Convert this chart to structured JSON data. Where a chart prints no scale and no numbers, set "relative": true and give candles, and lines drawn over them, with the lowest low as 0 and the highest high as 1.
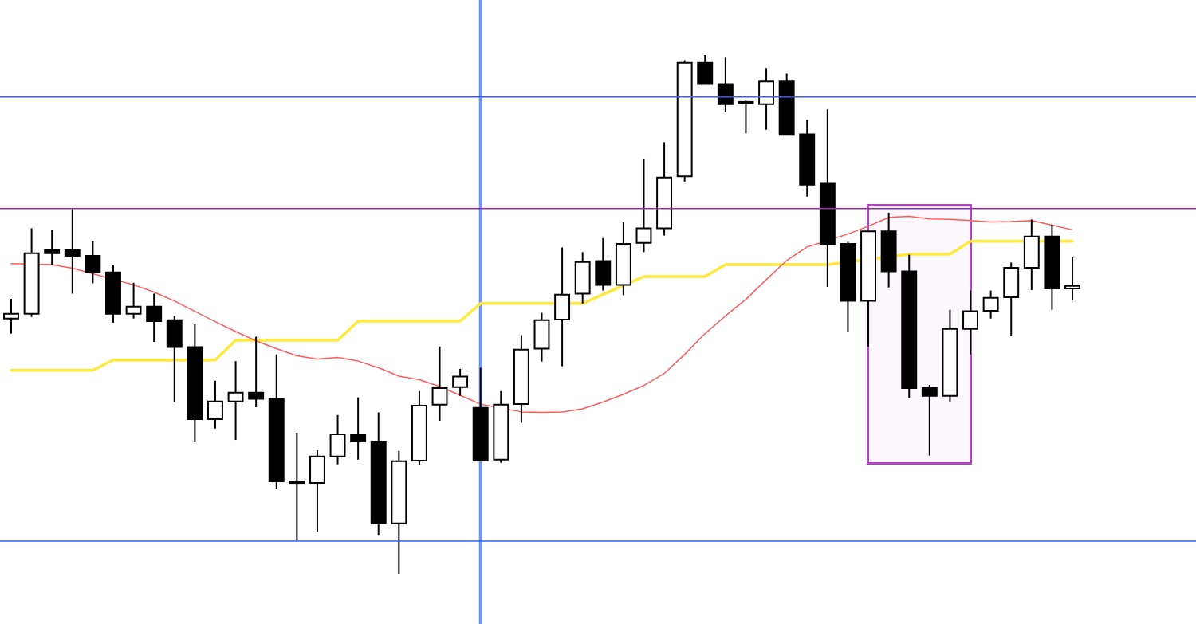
{
  "chart_data": {
    "type": "candlestick",
    "relative": true,
    "color": "#000000",
    "categories": [
      null,
      null,
      null,
      null,
      null,
      null,
      null,
      null,
      null,
      null,
      null,
      null,
      null,
      null,
      null,
      null,
      null,
      null,
      null,
      null,
      null,
      null,
      null,
      null,
      null,
      null,
      null,
      null,
      null,
      null,
      null,
      null,
      null,
      null,
      null,
      null,
      null,
      null,
      null,
      null,
      null,
      null,
      null,
      null,
      null,
      null,
      null,
      null,
      null,
      null,
      null,
      null,
      null
    ],
    "ohlc": [
      [
        0.492,
        0.53,
        0.463,
        0.501
      ],
      [
        0.501,
        0.666,
        0.495,
        0.618
      ],
      [
        0.624,
        0.663,
        0.595,
        0.618
      ],
      [
        0.624,
        0.703,
        0.54,
        0.613
      ],
      [
        0.613,
        0.641,
        0.56,
        0.581
      ],
      [
        0.581,
        0.595,
        0.484,
        0.501
      ],
      [
        0.501,
        0.561,
        0.492,
        0.515
      ],
      [
        0.515,
        0.54,
        0.447,
        0.487
      ],
      [
        0.489,
        0.497,
        0.331,
        0.437
      ],
      [
        0.437,
        0.481,
        0.255,
        0.298
      ],
      [
        0.298,
        0.372,
        0.28,
        0.332
      ],
      [
        0.332,
        0.41,
        0.258,
        0.349
      ],
      [
        0.349,
        0.457,
        0.321,
        0.337
      ],
      [
        0.337,
        0.423,
        0.163,
        0.178
      ],
      [
        0.178,
        0.272,
        0.065,
        0.175
      ],
      [
        0.175,
        0.238,
        0.081,
        0.226
      ],
      [
        0.226,
        0.306,
        0.211,
        0.269
      ],
      [
        0.269,
        0.34,
        0.22,
        0.255
      ],
      [
        0.255,
        0.311,
        0.075,
        0.097
      ],
      [
        0.097,
        0.237,
        0,
        0.217
      ],
      [
        0.218,
        0.352,
        0.209,
        0.324
      ],
      [
        0.326,
        0.438,
        0.295,
        0.358
      ],
      [
        0.36,
        0.395,
        0.343,
        0.38
      ],
      [
        0.32,
        0.397,
        0.217,
        0.218
      ],
      [
        0.22,
        0.352,
        0.214,
        0.326
      ],
      [
        0.327,
        0.46,
        0.291,
        0.432
      ],
      [
        0.434,
        0.503,
        0.409,
        0.489
      ],
      [
        0.49,
        0.629,
        0.4,
        0.538
      ],
      [
        0.54,
        0.62,
        0.521,
        0.601
      ],
      [
        0.603,
        0.647,
        0.546,
        0.557
      ],
      [
        0.557,
        0.678,
        0.537,
        0.636
      ],
      [
        0.638,
        0.799,
        0.62,
        0.666
      ],
      [
        0.666,
        0.832,
        0.652,
        0.764
      ],
      [
        0.766,
        0.99,
        0.756,
        0.985
      ],
      [
        0.985,
        1,
        0.944,
        0.944
      ],
      [
        0.944,
        0.995,
        0.89,
        0.905
      ],
      [
        0.909,
        0.912,
        0.849,
        0.907
      ],
      [
        0.905,
        0.975,
        0.856,
        0.949
      ],
      [
        0.949,
        0.964,
        0.846,
        0.846
      ],
      [
        0.847,
        0.875,
        0.727,
        0.75
      ],
      [
        0.752,
        0.895,
        0.553,
        0.635
      ],
      [
        0.636,
        0.64,
        0.467,
        0.526
      ],
      [
        0.526,
        0.66,
        0.438,
        0.66
      ],
      [
        0.66,
        0.696,
        0.552,
        0.583
      ],
      [
        0.583,
        0.615,
        0.338,
        0.358
      ],
      [
        0.358,
        0.364,
        0.228,
        0.343
      ],
      [
        0.343,
        0.509,
        0.332,
        0.472
      ],
      [
        0.472,
        0.546,
        0.423,
        0.506
      ],
      [
        0.507,
        0.546,
        0.492,
        0.532
      ],
      [
        0.533,
        0.6,
        0.458,
        0.59
      ],
      [
        0.59,
        0.683,
        0.547,
        0.65
      ],
      [
        0.65,
        0.673,
        0.509,
        0.55
      ],
      [
        0.55,
        0.61,
        0.527,
        0.555
      ]
    ],
    "colors": [
      "#ffffff",
      "#ffffff",
      "#000000",
      "#000000",
      "#000000",
      "#000000",
      "#ffffff",
      "#000000",
      "#000000",
      "#000000",
      "#ffffff",
      "#ffffff",
      "#000000",
      "#000000",
      "#000000",
      "#ffffff",
      "#ffffff",
      "#000000",
      "#000000",
      "#ffffff",
      "#ffffff",
      "#ffffff",
      "#ffffff",
      "#000000",
      "#ffffff",
      "#ffffff",
      "#ffffff",
      "#ffffff",
      "#ffffff",
      "#000000",
      "#ffffff",
      "#ffffff",
      "#ffffff",
      "#ffffff",
      "#000000",
      "#000000",
      "#000000",
      "#ffffff",
      "#000000",
      "#000000",
      "#000000",
      "#000000",
      "#ffffff",
      "#000000",
      "#000000",
      "#000000",
      "#ffffff",
      "#ffffff",
      "#ffffff",
      "#ffffff",
      "#ffffff",
      "#000000",
      "#ffffff"
    ],
    "series": [
      {
        "type": "line",
        "color": "#ff5b5b",
        "values": [
          0.598,
          null,
          0.596,
          0.589,
          null,
          null,
          0.557,
          0.543,
          0.526,
          0.506,
          0.486,
          0.467,
          0.449,
          0.434,
          0.42,
          0.414,
          0.417,
          0.41,
          0.397,
          0.381,
          0.374,
          0.361,
          0.344,
          0.327,
          null,
          0.312,
          0.311,
          0.312,
          0.318,
          0.331,
          0.346,
          0.363,
          0.386,
          0.423,
          0.463,
          0.497,
          0.529,
          0.567,
          0.604,
          0.63,
          null,
          0.655,
          0.67,
          0.687,
          0.689,
          0.684,
          0.683,
          0.681,
          0.678,
          0.679,
          0.681,
          0.672,
          0.663
        ]
      },
      {
        "type": "line",
        "color": "#ffe93b",
        "values": [
          0.392,
          0.392,
          0.392,
          0.392,
          0.392,
          0.412,
          0.412,
          0.412,
          0.412,
          null,
          0.412,
          0.45,
          0.45,
          0.45,
          0.45,
          0.45,
          0.45,
          0.487,
          0.487,
          0.487,
          0.487,
          0.487,
          0.487,
          0.521,
          0.521,
          0.521,
          0.521,
          null,
          0.521,
          null,
          null,
          0.573,
          0.573,
          0.573,
          0.573,
          0.596,
          0.596,
          0.596,
          0.596,
          0.596,
          0.596,
          null,
          null,
          null,
          0.616,
          0.616,
          0.616,
          0.641,
          0.641,
          0.641,
          null,
          null,
          0.641
        ]
      }
    ],
    "ref_lines": [
      {
        "axis": "y",
        "value": 0.919,
        "color": "#2962ff"
      },
      {
        "axis": "y",
        "value": 0.704,
        "color": "#9c27b0"
      },
      {
        "axis": "y",
        "value": 0.063,
        "color": "#2962ff"
      }
    ]
  }
}
